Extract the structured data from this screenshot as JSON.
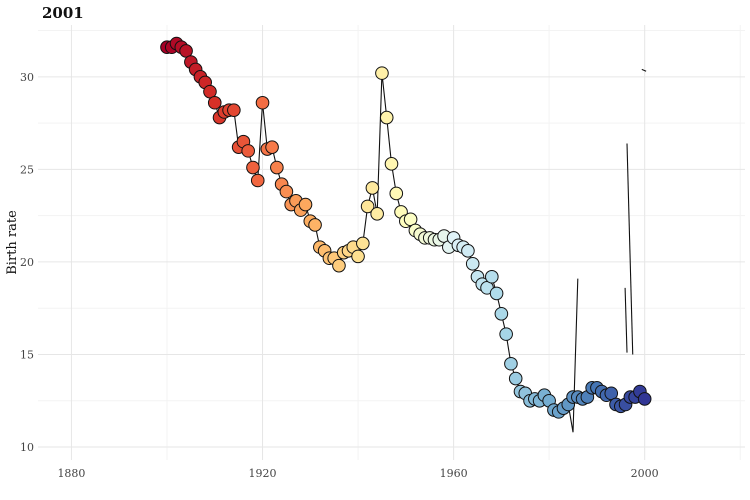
{
  "chart_data": {
    "type": "scatter",
    "title": "2001",
    "xlabel": "",
    "ylabel": "Birth rate",
    "xlim": [
      1873,
      2021
    ],
    "ylim": [
      9.3,
      32.8
    ],
    "x_ticks": [
      1880,
      1920,
      1960,
      2000
    ],
    "y_ticks": [
      10,
      15,
      20,
      25,
      30
    ],
    "grid": true,
    "legend": "none",
    "color_scale": [
      "#a50026",
      "#d73027",
      "#f46d43",
      "#fdae61",
      "#fee090",
      "#ffffbf",
      "#e0f3f8",
      "#abd9e9",
      "#74add1",
      "#4575b4",
      "#313695"
    ],
    "series": [
      {
        "values": [
          [
            1900,
            31.6
          ],
          [
            1901,
            31.6
          ],
          [
            1902,
            31.8
          ],
          [
            1903,
            31.6
          ],
          [
            1904,
            31.4
          ],
          [
            1905,
            30.8
          ],
          [
            1906,
            30.4
          ],
          [
            1907,
            30.0
          ],
          [
            1908,
            29.7
          ],
          [
            1909,
            29.2
          ],
          [
            1910,
            28.6
          ],
          [
            1911,
            27.8
          ],
          [
            1912,
            28.1
          ],
          [
            1913,
            28.2
          ],
          [
            1914,
            28.2
          ],
          [
            1915,
            26.2
          ],
          [
            1916,
            26.5
          ],
          [
            1917,
            26.0
          ],
          [
            1918,
            25.1
          ],
          [
            1919,
            24.4
          ],
          [
            1920,
            28.6
          ],
          [
            1921,
            26.1
          ],
          [
            1922,
            26.2
          ],
          [
            1923,
            25.1
          ],
          [
            1924,
            24.2
          ],
          [
            1925,
            23.8
          ],
          [
            1926,
            23.1
          ],
          [
            1927,
            23.3
          ],
          [
            1928,
            22.8
          ],
          [
            1929,
            23.1
          ],
          [
            1930,
            22.2
          ],
          [
            1931,
            22.0
          ],
          [
            1932,
            20.8
          ],
          [
            1933,
            20.6
          ],
          [
            1934,
            20.2
          ],
          [
            1935,
            20.2
          ],
          [
            1936,
            19.8
          ],
          [
            1937,
            20.5
          ],
          [
            1938,
            20.6
          ],
          [
            1939,
            20.8
          ],
          [
            1940,
            20.3
          ],
          [
            1941,
            21.0
          ],
          [
            1942,
            23.0
          ],
          [
            1943,
            24.0
          ],
          [
            1944,
            22.6
          ],
          [
            1945,
            30.2
          ],
          [
            1946,
            27.8
          ],
          [
            1947,
            25.3
          ],
          [
            1948,
            23.7
          ],
          [
            1949,
            22.7
          ],
          [
            1950,
            22.2
          ],
          [
            1951,
            22.3
          ],
          [
            1952,
            21.7
          ],
          [
            1953,
            21.5
          ],
          [
            1954,
            21.3
          ],
          [
            1955,
            21.3
          ],
          [
            1956,
            21.2
          ],
          [
            1957,
            21.2
          ],
          [
            1958,
            21.4
          ],
          [
            1959,
            20.8
          ],
          [
            1960,
            21.3
          ],
          [
            1961,
            20.9
          ],
          [
            1962,
            20.8
          ],
          [
            1963,
            20.6
          ],
          [
            1964,
            19.9
          ],
          [
            1965,
            19.2
          ],
          [
            1966,
            18.8
          ],
          [
            1967,
            18.6
          ],
          [
            1968,
            19.2
          ],
          [
            1969,
            18.3
          ],
          [
            1970,
            17.2
          ],
          [
            1971,
            16.1
          ],
          [
            1972,
            14.5
          ],
          [
            1973,
            13.7
          ],
          [
            1974,
            13.0
          ],
          [
            1975,
            12.9
          ],
          [
            1976,
            12.5
          ],
          [
            1977,
            12.6
          ],
          [
            1978,
            12.5
          ],
          [
            1979,
            12.8
          ],
          [
            1980,
            12.5
          ],
          [
            1981,
            12.0
          ],
          [
            1982,
            11.9
          ],
          [
            1983,
            12.1
          ],
          [
            1984,
            12.3
          ],
          [
            1985,
            12.7
          ],
          [
            1986,
            12.7
          ],
          [
            1987,
            12.6
          ],
          [
            1988,
            12.7
          ],
          [
            1989,
            13.2
          ],
          [
            1990,
            13.2
          ],
          [
            1991,
            13.0
          ],
          [
            1992,
            12.8
          ],
          [
            1993,
            12.9
          ],
          [
            1994,
            12.3
          ],
          [
            1995,
            12.2
          ],
          [
            1996,
            12.3
          ],
          [
            1997,
            12.7
          ],
          [
            1998,
            12.7
          ],
          [
            1999,
            13.0
          ],
          [
            2000,
            12.6
          ]
        ]
      }
    ],
    "trail": [
      [
        1900,
        31.6
      ],
      [
        1901,
        31.6
      ],
      [
        1902,
        31.8
      ],
      [
        1903,
        31.6
      ],
      [
        1904,
        31.4
      ],
      [
        1905,
        30.8
      ],
      [
        1906,
        30.4
      ],
      [
        1907,
        30.0
      ],
      [
        1908,
        29.7
      ],
      [
        1909,
        29.2
      ],
      [
        1910,
        28.6
      ],
      [
        1911,
        27.8
      ],
      [
        1912,
        28.1
      ],
      [
        1913,
        28.2
      ],
      [
        1914,
        28.2
      ],
      [
        1915,
        26.2
      ],
      [
        1916,
        26.5
      ],
      [
        1917,
        26.0
      ],
      [
        1918,
        25.1
      ],
      [
        1919,
        24.4
      ],
      [
        1920,
        28.6
      ],
      [
        1921,
        26.1
      ],
      [
        1922,
        26.2
      ],
      [
        1923,
        25.1
      ],
      [
        1924,
        24.2
      ],
      [
        1925,
        23.8
      ],
      [
        1926,
        23.1
      ],
      [
        1927,
        23.3
      ],
      [
        1928,
        22.8
      ],
      [
        1929,
        23.1
      ],
      [
        1930,
        22.2
      ],
      [
        1931,
        22.0
      ],
      [
        1932,
        20.8
      ],
      [
        1933,
        20.6
      ],
      [
        1934,
        20.2
      ],
      [
        1935,
        20.2
      ],
      [
        1936,
        19.8
      ],
      [
        1937,
        20.5
      ],
      [
        1938,
        20.6
      ],
      [
        1939,
        20.8
      ],
      [
        1940,
        20.3
      ],
      [
        1941,
        21.0
      ],
      [
        1942,
        23.0
      ],
      [
        1943,
        24.0
      ],
      [
        1944,
        22.6
      ],
      [
        1945,
        30.2
      ],
      [
        1946,
        27.8
      ],
      [
        1947,
        25.3
      ],
      [
        1948,
        23.7
      ],
      [
        1949,
        22.7
      ],
      [
        1950,
        22.2
      ],
      [
        1951,
        22.3
      ],
      [
        1952,
        21.7
      ],
      [
        1953,
        21.5
      ],
      [
        1954,
        21.3
      ],
      [
        1955,
        21.3
      ],
      [
        1956,
        21.2
      ],
      [
        1957,
        21.2
      ],
      [
        1958,
        21.4
      ],
      [
        1959,
        20.8
      ],
      [
        1960,
        21.3
      ],
      [
        1961,
        20.9
      ],
      [
        1962,
        20.8
      ],
      [
        1963,
        20.6
      ],
      [
        1964,
        19.9
      ],
      [
        1965,
        19.2
      ],
      [
        1966,
        18.8
      ],
      [
        1967,
        18.6
      ],
      [
        1968,
        19.2
      ],
      [
        1969,
        18.3
      ],
      [
        1970,
        17.2
      ],
      [
        1971,
        16.1
      ],
      [
        1972,
        14.5
      ],
      [
        1973,
        13.7
      ],
      [
        1974,
        13.0
      ],
      [
        1975,
        12.9
      ],
      [
        1976,
        12.5
      ],
      [
        1977,
        12.6
      ],
      [
        1978,
        12.5
      ],
      [
        1979,
        12.8
      ],
      [
        1980,
        12.5
      ],
      [
        1981,
        12.0
      ],
      [
        1982,
        11.9
      ],
      [
        1983,
        12.1
      ],
      [
        1984,
        12.3
      ],
      [
        1985,
        10.8
      ],
      [
        1986,
        19.1
      ]
    ],
    "stray_segments": [
      [
        [
          1995.9,
          18.6
        ],
        [
          1996.3,
          15.1
        ]
      ],
      [
        [
          1996.3,
          26.4
        ],
        [
          1997.5,
          15.0
        ]
      ],
      [
        [
          1999.4,
          30.4
        ],
        [
          2000.3,
          30.3
        ]
      ]
    ]
  }
}
